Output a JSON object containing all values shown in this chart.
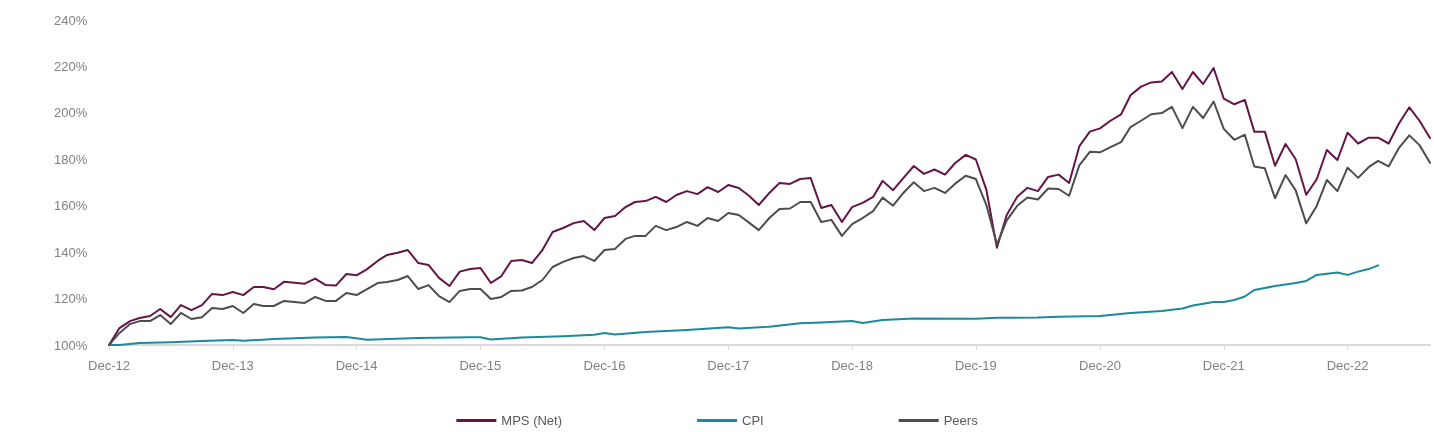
{
  "chart_data": {
    "type": "line",
    "x": [
      "2012-12",
      "2013-01",
      "2013-02",
      "2013-03",
      "2013-04",
      "2013-05",
      "2013-06",
      "2013-07",
      "2013-08",
      "2013-09",
      "2013-10",
      "2013-11",
      "2013-12",
      "2014-01",
      "2014-02",
      "2014-03",
      "2014-04",
      "2014-05",
      "2014-06",
      "2014-07",
      "2014-08",
      "2014-09",
      "2014-10",
      "2014-11",
      "2014-12",
      "2015-01",
      "2015-02",
      "2015-03",
      "2015-04",
      "2015-05",
      "2015-06",
      "2015-07",
      "2015-08",
      "2015-09",
      "2015-10",
      "2015-11",
      "2015-12",
      "2016-01",
      "2016-02",
      "2016-03",
      "2016-04",
      "2016-05",
      "2016-06",
      "2016-07",
      "2016-08",
      "2016-09",
      "2016-10",
      "2016-11",
      "2016-12",
      "2017-01",
      "2017-02",
      "2017-03",
      "2017-04",
      "2017-05",
      "2017-06",
      "2017-07",
      "2017-08",
      "2017-09",
      "2017-10",
      "2017-11",
      "2017-12",
      "2018-01",
      "2018-02",
      "2018-03",
      "2018-04",
      "2018-05",
      "2018-06",
      "2018-07",
      "2018-08",
      "2018-09",
      "2018-10",
      "2018-11",
      "2018-12",
      "2019-01",
      "2019-02",
      "2019-03",
      "2019-04",
      "2019-05",
      "2019-06",
      "2019-07",
      "2019-08",
      "2019-09",
      "2019-10",
      "2019-11",
      "2019-12",
      "2020-01",
      "2020-02",
      "2020-03",
      "2020-04",
      "2020-05",
      "2020-06",
      "2020-07",
      "2020-08",
      "2020-09",
      "2020-10",
      "2020-11",
      "2020-12",
      "2021-01",
      "2021-02",
      "2021-03",
      "2021-04",
      "2021-05",
      "2021-06",
      "2021-07",
      "2021-08",
      "2021-09",
      "2021-10",
      "2021-11",
      "2021-12",
      "2022-01",
      "2022-02",
      "2022-03",
      "2022-04",
      "2022-05",
      "2022-06",
      "2022-07",
      "2022-08",
      "2022-09",
      "2022-10",
      "2022-11",
      "2022-12",
      "2023-01",
      "2023-02",
      "2023-03",
      "2023-04",
      "2023-05",
      "2023-06",
      "2023-07",
      "2023-08"
    ],
    "series": [
      {
        "name": "MPS (Net)",
        "color": "#651549",
        "values": [
          100,
          107.3,
          110.3,
          111.6,
          112.5,
          115.5,
          112,
          117.2,
          115,
          117.2,
          122,
          121.5,
          122.8,
          121.5,
          125,
          125,
          124,
          127.2,
          126.8,
          126.4,
          128.6,
          125.8,
          125.6,
          130.6,
          130,
          132.7,
          136.2,
          138.8,
          139.7,
          140.9,
          135.3,
          134.5,
          128.9,
          125.4,
          131.6,
          132.7,
          133.2,
          126.7,
          129.7,
          136.2,
          136.6,
          135.3,
          140.9,
          148.7,
          150.4,
          152.5,
          153.4,
          149.5,
          154.7,
          155.6,
          159.4,
          161.6,
          162,
          163.8,
          161.6,
          164.6,
          166.3,
          165,
          168,
          165.9,
          168.9,
          167.6,
          164.2,
          160.3,
          165.5,
          169.8,
          169.4,
          171.5,
          171.9,
          159,
          160.3,
          153,
          159.4,
          161.2,
          163.8,
          170.7,
          166.7,
          171.9,
          177.1,
          173.7,
          175.6,
          173.4,
          178.4,
          181.9,
          179.9,
          166.8,
          141.9,
          156,
          163.9,
          167.7,
          166.3,
          172.4,
          173.4,
          169.8,
          185.6,
          191.9,
          193.3,
          196.6,
          199.3,
          207.6,
          211.3,
          213.1,
          213.5,
          217.6,
          210.3,
          217.6,
          212.4,
          219.3,
          206.1,
          203.7,
          205.6,
          191.9,
          191.9,
          177.2,
          186.6,
          180,
          164.7,
          171.4,
          184,
          179.7,
          191.5,
          186.8,
          189.3,
          189.3,
          186.8,
          195.3,
          202.4,
          196.6,
          189.2
        ]
      },
      {
        "name": "CPI",
        "color": "#1a8a9c",
        "x": [
          "2012-12",
          "2013-01",
          "2013-03",
          "2013-06",
          "2013-09",
          "2013-12",
          "2014-01",
          "2014-04",
          "2014-08",
          "2014-11",
          "2015-01",
          "2015-06",
          "2015-11",
          "2015-12",
          "2016-01",
          "2016-04",
          "2016-08",
          "2016-11",
          "2016-12",
          "2017-01",
          "2017-04",
          "2017-08",
          "2017-12",
          "2018-01",
          "2018-04",
          "2018-07",
          "2018-09",
          "2018-12",
          "2019-01",
          "2019-03",
          "2019-06",
          "2019-12",
          "2020-02",
          "2020-06",
          "2020-08",
          "2020-12",
          "2021-03",
          "2021-06",
          "2021-08",
          "2021-09",
          "2021-11",
          "2021-12",
          "2022-01",
          "2022-02",
          "2022-03",
          "2022-05",
          "2022-07",
          "2022-08",
          "2022-09",
          "2022-11",
          "2022-12",
          "2023-01",
          "2023-02",
          "2023-03"
        ],
        "values": [
          100,
          100,
          100.9,
          101.2,
          101.7,
          102.2,
          101.8,
          102.6,
          103.2,
          103.4,
          102.3,
          103,
          103.3,
          103.3,
          102.4,
          103.2,
          103.8,
          104.4,
          105.2,
          104.5,
          105.6,
          106.5,
          107.6,
          107.1,
          107.9,
          109.4,
          109.7,
          110.3,
          109.5,
          110.8,
          111.4,
          111.3,
          111.7,
          111.8,
          112.2,
          112.5,
          113.8,
          114.6,
          115.7,
          117,
          118.5,
          118.5,
          119.4,
          120.9,
          123.7,
          125.4,
          126.7,
          127.6,
          130.2,
          131.2,
          130.2,
          131.6,
          132.7,
          134.3
        ]
      },
      {
        "name": "Peers",
        "color": "#4d4d4d",
        "values": [
          100,
          105.2,
          109,
          110.3,
          110.3,
          112.9,
          109,
          113.8,
          111.2,
          112,
          115.9,
          115.5,
          116.8,
          113.8,
          117.7,
          116.8,
          116.8,
          119,
          118.5,
          118.1,
          120.7,
          119,
          119,
          122.4,
          121.5,
          124.1,
          126.7,
          127.1,
          128,
          129.7,
          124.1,
          125.8,
          121.1,
          118.5,
          123.3,
          124.1,
          124.1,
          119.8,
          120.7,
          123.3,
          123.5,
          125,
          128,
          133.6,
          135.8,
          137.5,
          138.3,
          136.2,
          140.9,
          141.4,
          145.7,
          147,
          147,
          151.3,
          149.5,
          150.8,
          153,
          151.3,
          154.7,
          153.4,
          156.9,
          156,
          152.6,
          149.5,
          154.7,
          158.6,
          158.8,
          161.6,
          161.6,
          153,
          153.9,
          147,
          152.1,
          154.7,
          157.7,
          163.5,
          160,
          165.5,
          170.1,
          166.3,
          167.7,
          165.5,
          169.5,
          172.9,
          171.5,
          160.3,
          143.3,
          153.7,
          160,
          163.5,
          162.7,
          167.4,
          167.2,
          164.3,
          177.4,
          183.2,
          183,
          185.2,
          187.4,
          193.9,
          196.6,
          199.4,
          199.9,
          202.6,
          193.4,
          202.6,
          197.8,
          204.9,
          193.1,
          188.4,
          190.6,
          176.9,
          176.1,
          163.2,
          173.2,
          166.6,
          152.4,
          159.9,
          171.1,
          166.3,
          176.4,
          172,
          176.6,
          179.3,
          176.9,
          184.8,
          190.3,
          186.1,
          178.5
        ]
      }
    ],
    "xlim": [
      "2012-12",
      "2023-08"
    ],
    "xticks": [
      {
        "value": "2012-12",
        "label": "Dec-12"
      },
      {
        "value": "2013-12",
        "label": "Dec-13"
      },
      {
        "value": "2014-12",
        "label": "Dec-14"
      },
      {
        "value": "2015-12",
        "label": "Dec-15"
      },
      {
        "value": "2016-12",
        "label": "Dec-16"
      },
      {
        "value": "2017-12",
        "label": "Dec-17"
      },
      {
        "value": "2018-12",
        "label": "Dec-18"
      },
      {
        "value": "2019-12",
        "label": "Dec-19"
      },
      {
        "value": "2020-12",
        "label": "Dec-20"
      },
      {
        "value": "2021-12",
        "label": "Dec-21"
      },
      {
        "value": "2022-12",
        "label": "Dec-22"
      }
    ],
    "ylim": [
      100,
      240
    ],
    "yticks": [
      {
        "value": 100,
        "label": "100%"
      },
      {
        "value": 120,
        "label": "120%"
      },
      {
        "value": 140,
        "label": "140%"
      },
      {
        "value": 160,
        "label": "160%"
      },
      {
        "value": 180,
        "label": "180%"
      },
      {
        "value": 200,
        "label": "200%"
      },
      {
        "value": 220,
        "label": "220%"
      },
      {
        "value": 240,
        "label": "240%"
      }
    ],
    "legend": "bottom"
  }
}
